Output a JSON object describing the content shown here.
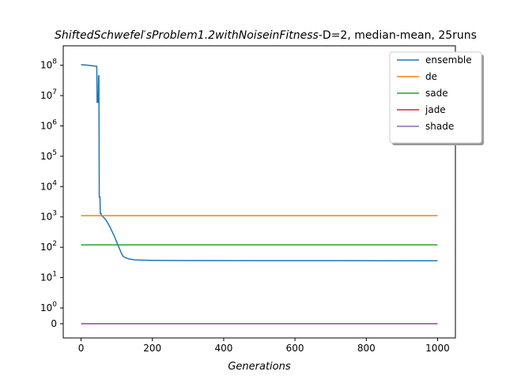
{
  "chart_data": {
    "type": "line",
    "title_italic": "ShiftedSchwefel′sProblem1.2withNoiseinFitness",
    "title_rest": "-D=2, median-mean, 25runs",
    "xlabel": "Generations",
    "ylabel": "",
    "xlim": [
      -50,
      1050
    ],
    "x_ticks": [
      0,
      200,
      400,
      600,
      800,
      1000
    ],
    "y_scale": "symlog",
    "y_ticks": [
      {
        "value": 0,
        "label": "0"
      },
      {
        "value": 1,
        "label": "10",
        "exp": "0"
      },
      {
        "value": 10,
        "label": "10",
        "exp": "1"
      },
      {
        "value": 100,
        "label": "10",
        "exp": "2"
      },
      {
        "value": 1000,
        "label": "10",
        "exp": "3"
      },
      {
        "value": 10000,
        "label": "10",
        "exp": "4"
      },
      {
        "value": 100000,
        "label": "10",
        "exp": "5"
      },
      {
        "value": 1000000,
        "label": "10",
        "exp": "6"
      },
      {
        "value": 10000000,
        "label": "10",
        "exp": "7"
      },
      {
        "value": 100000000,
        "label": "10",
        "exp": "8"
      }
    ],
    "legend_position": "top-right",
    "series": [
      {
        "name": "ensemble",
        "color": "#1f77b4",
        "points": [
          [
            0,
            105000000
          ],
          [
            20,
            100000000
          ],
          [
            35,
            95000000
          ],
          [
            44,
            92000000
          ],
          [
            45,
            6000000
          ],
          [
            48,
            6000000
          ],
          [
            49,
            45000000
          ],
          [
            50,
            45000000
          ],
          [
            51,
            4500
          ],
          [
            53,
            4500
          ],
          [
            54,
            1300
          ],
          [
            56,
            1300
          ],
          [
            58,
            1100
          ],
          [
            62,
            1000
          ],
          [
            66,
            900
          ],
          [
            70,
            780
          ],
          [
            74,
            660
          ],
          [
            78,
            540
          ],
          [
            82,
            440
          ],
          [
            86,
            350
          ],
          [
            90,
            280
          ],
          [
            94,
            220
          ],
          [
            98,
            170
          ],
          [
            102,
            130
          ],
          [
            106,
            100
          ],
          [
            110,
            78
          ],
          [
            114,
            60
          ],
          [
            118,
            50
          ],
          [
            125,
            45
          ],
          [
            135,
            41
          ],
          [
            150,
            38.5
          ],
          [
            175,
            37.5
          ],
          [
            200,
            37
          ],
          [
            300,
            36.5
          ],
          [
            500,
            36.3
          ],
          [
            700,
            36.1
          ],
          [
            900,
            36
          ],
          [
            1000,
            35.8
          ]
        ]
      },
      {
        "name": "de",
        "color": "#ff7f0e",
        "points": [
          [
            0,
            1100
          ],
          [
            1000,
            1100
          ]
        ]
      },
      {
        "name": "sade",
        "color": "#2ca02c",
        "points": [
          [
            0,
            120
          ],
          [
            1000,
            120
          ]
        ]
      },
      {
        "name": "jade",
        "color": "#d62728",
        "points": [
          [
            0,
            0
          ],
          [
            1000,
            0
          ]
        ]
      },
      {
        "name": "shade",
        "color": "#9467bd",
        "points": [
          [
            0,
            0
          ],
          [
            1000,
            0
          ]
        ]
      }
    ]
  }
}
